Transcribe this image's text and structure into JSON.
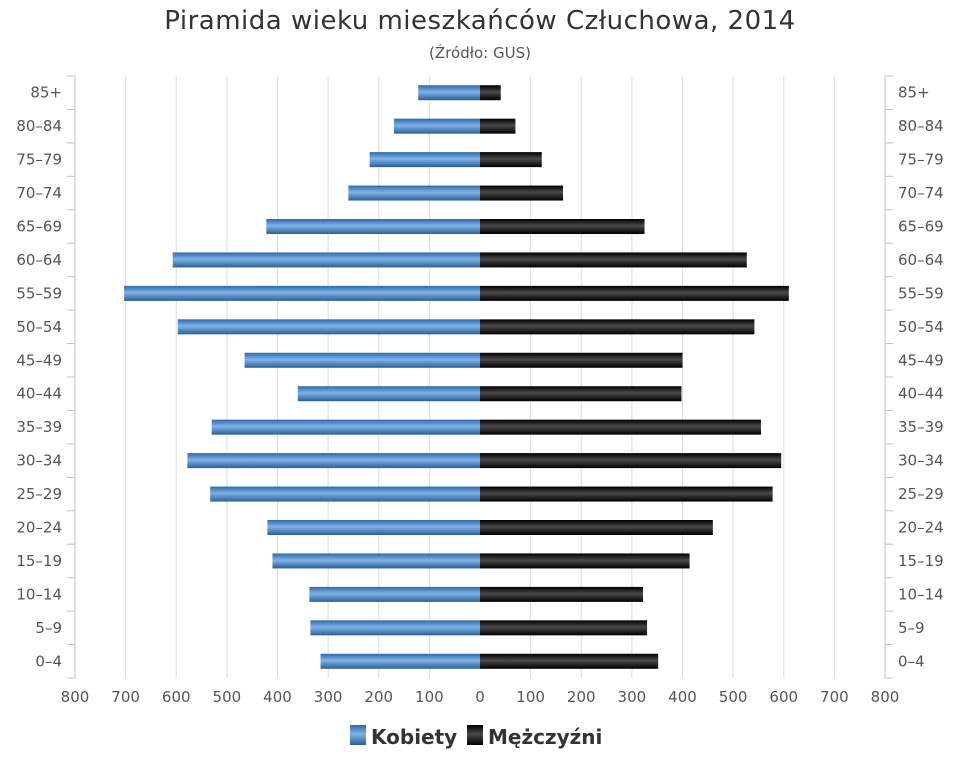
{
  "chart_data": {
    "type": "bar",
    "orientation": "horizontal-pyramid",
    "title": "Piramida wieku mieszkańców Człuchowa, 2014",
    "subtitle": "(Źródło: GUS)",
    "categories": [
      "0–4",
      "5–9",
      "10–14",
      "15–19",
      "20–24",
      "25–29",
      "30–34",
      "35–39",
      "40–44",
      "45–49",
      "50–54",
      "55–59",
      "60–64",
      "65–69",
      "70–74",
      "75–79",
      "80–84",
      "85+"
    ],
    "x_ticks": [
      "800",
      "700",
      "600",
      "500",
      "400",
      "300",
      "200",
      "100",
      "0",
      "100",
      "200",
      "300",
      "400",
      "500",
      "600",
      "700",
      "800"
    ],
    "xlim": [
      -800,
      800
    ],
    "grid": true,
    "legend_position": "bottom",
    "series": [
      {
        "name": "Kobiety",
        "color": "#4a8ed4",
        "values": [
          315,
          335,
          337,
          410,
          420,
          533,
          578,
          530,
          360,
          465,
          597,
          703,
          607,
          422,
          260,
          218,
          170,
          122
        ]
      },
      {
        "name": "Mężczyźni",
        "color": "#222222",
        "values": [
          352,
          330,
          322,
          414,
          460,
          578,
          595,
          555,
          398,
          400,
          542,
          610,
          527,
          325,
          164,
          122,
          70,
          41
        ]
      }
    ]
  }
}
